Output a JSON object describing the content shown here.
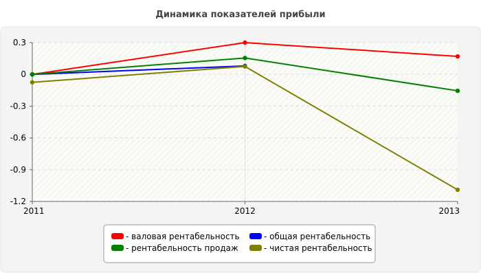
{
  "chart_data": {
    "type": "line",
    "title": "Динамика показателей прибыли",
    "xlabel": "",
    "ylabel": "",
    "x": [
      "2011",
      "2012",
      "2013"
    ],
    "ylim": [
      -1.2,
      0.3
    ],
    "yticks": [
      0.3,
      0,
      -0.3,
      -0.6,
      -0.9,
      -1.2
    ],
    "ytick_labels": [
      "0.3",
      "0",
      "-0.3",
      "-0.6",
      "-0.9",
      "-1.2"
    ],
    "grid": true,
    "legend_position": "bottom",
    "series": [
      {
        "name": "- валовая рентабельность",
        "color": "#ff0000",
        "values": [
          0.0,
          0.3,
          0.17
        ]
      },
      {
        "name": "- общая рентабельность",
        "color": "#0000ff",
        "values": [
          0.0,
          0.08,
          null
        ]
      },
      {
        "name": "- рентабельность продаж",
        "color": "#008000",
        "values": [
          0.0,
          0.155,
          -0.155
        ]
      },
      {
        "name": "- чистая рентабельность",
        "color": "#808000",
        "values": [
          -0.075,
          0.075,
          -1.09
        ]
      }
    ]
  }
}
